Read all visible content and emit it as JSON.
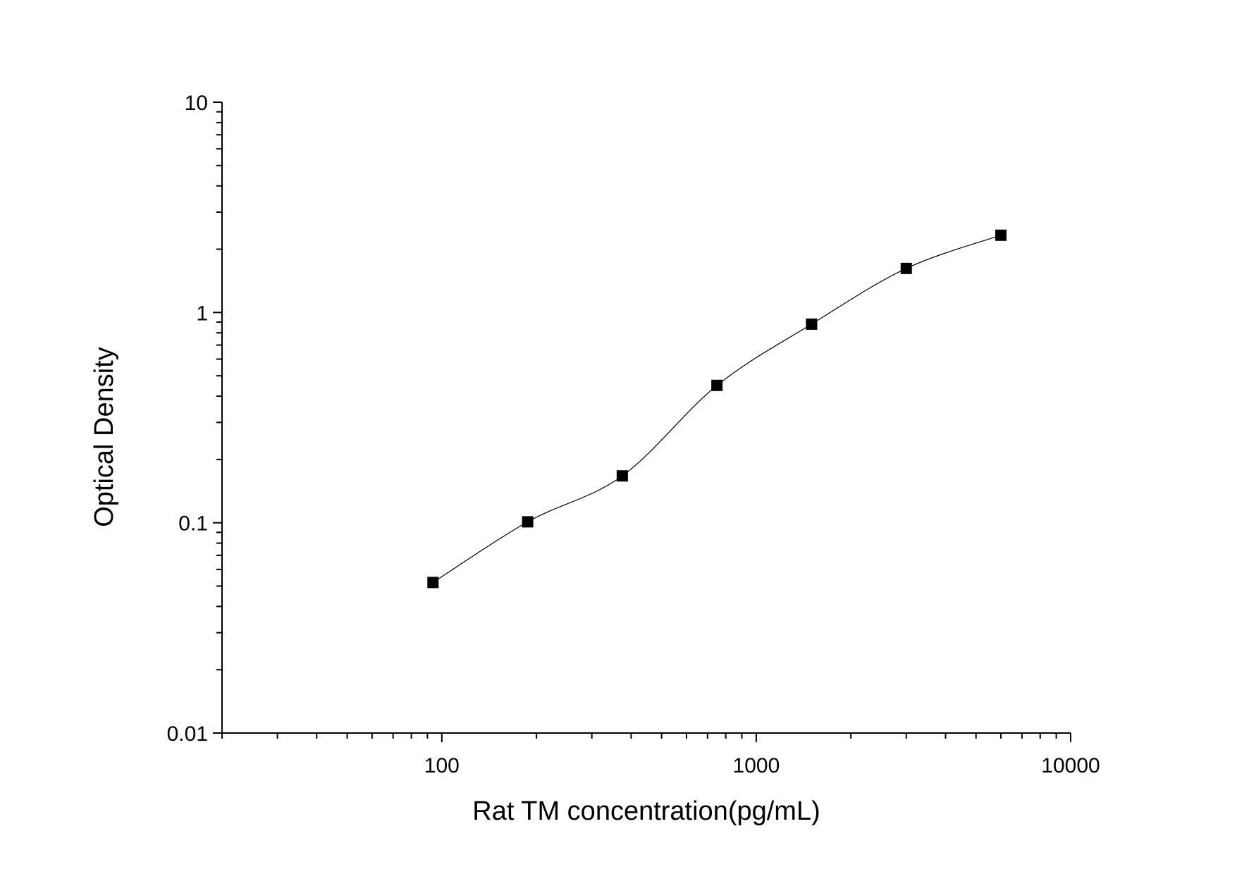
{
  "chart_data": {
    "type": "scatter",
    "title": "",
    "xlabel": "Rat TM concentration(pg/mL)",
    "ylabel": "Optical Density",
    "xscale": "log",
    "yscale": "log",
    "xlim": [
      20,
      10000
    ],
    "ylim": [
      0.01,
      10
    ],
    "xticks": [
      "100",
      "1000",
      "10000"
    ],
    "yticks": [
      "0.01",
      "0.1",
      "1",
      "10"
    ],
    "grid": false,
    "legend": "none",
    "marker": "square",
    "color": "#000000",
    "fit_line": true,
    "series": [
      {
        "x": [
          93.75,
          187.5,
          375,
          750,
          1500,
          3000,
          6000
        ],
        "y": [
          0.052,
          0.101,
          0.167,
          0.45,
          0.88,
          1.62,
          2.33
        ]
      }
    ]
  }
}
